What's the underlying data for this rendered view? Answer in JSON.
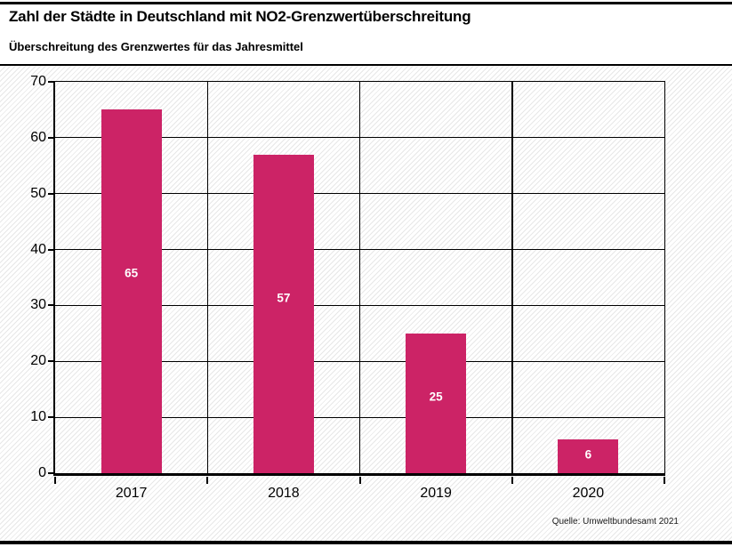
{
  "chart_data": {
    "type": "bar",
    "title": "Zahl der Städte in Deutschland mit NO2-Grenzwertüberschreitung",
    "subtitle": "Überschreitung des Grenzwertes für das Jahresmittel",
    "source": "Quelle: Umweltbundesamt 2021",
    "categories": [
      "2017",
      "2018",
      "2019",
      "2020"
    ],
    "values": [
      65,
      57,
      25,
      6
    ],
    "value_labels": [
      "65",
      "57",
      "25",
      "6"
    ],
    "xlabel": "",
    "ylabel": "",
    "ylim": [
      0,
      70
    ],
    "yticks": [
      0,
      10,
      20,
      30,
      40,
      50,
      60,
      70
    ],
    "grid": true,
    "legend": "none",
    "colors": {
      "bar": "#cc2366",
      "value_label": "#ffffff",
      "axis": "#000000",
      "gridline": "#000000",
      "text": "#000000",
      "hatch_line": "#e7e7e7",
      "background": "#ffffff"
    }
  }
}
